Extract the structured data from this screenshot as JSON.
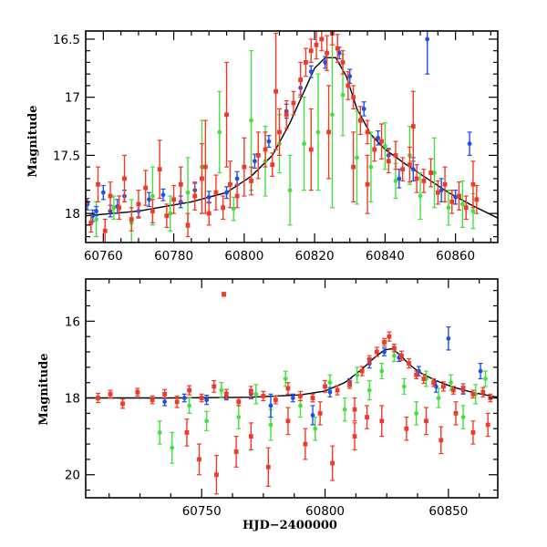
{
  "chart_data": [
    {
      "type": "scatter",
      "xlabel": "",
      "ylabel": "Magnitude",
      "xlim": [
        60755,
        60872
      ],
      "ylim": [
        18.25,
        16.43
      ],
      "y_inverted": true,
      "xticks": [
        60760,
        60780,
        60800,
        60820,
        60840,
        60860
      ],
      "yticks": [
        16.5,
        17,
        17.5,
        18
      ],
      "xtick_labels": [
        "60760",
        "60780",
        "60800",
        "60820",
        "60840",
        "60860"
      ],
      "ytick_labels": [
        "16.5",
        "17",
        "17.5",
        "18"
      ],
      "colors": {
        "red": "#f03a28",
        "green": "#44e040",
        "blue": "#1f4fe6",
        "model": "#000000"
      },
      "model_curve": {
        "x": [
          60755,
          60770,
          60785,
          60795,
          60802,
          60808,
          60813,
          60817,
          60820,
          60823,
          60826,
          60829,
          60832,
          60836,
          60840,
          60846,
          60852,
          60858,
          60864,
          60872
        ],
        "y": [
          18.02,
          17.98,
          17.9,
          17.82,
          17.68,
          17.5,
          17.22,
          16.95,
          16.75,
          16.66,
          16.66,
          16.82,
          17.1,
          17.32,
          17.45,
          17.58,
          17.7,
          17.82,
          17.92,
          18.04
        ]
      },
      "series": [
        {
          "color": "blue",
          "x": [
            60755.5,
            60757,
            60758,
            60760,
            60762,
            60764,
            60766,
            60770,
            60773,
            60777,
            60782,
            60786,
            60790,
            60795,
            60798,
            60803,
            60807,
            60812,
            60816,
            60819,
            60823,
            60827,
            60830,
            60834,
            60838,
            60841,
            60844,
            60848,
            60852,
            60856,
            60860,
            60864
          ],
          "y": [
            17.92,
            18.02,
            17.98,
            17.82,
            17.98,
            17.94,
            17.85,
            17.98,
            17.88,
            17.84,
            17.9,
            17.8,
            17.86,
            17.82,
            17.7,
            17.55,
            17.38,
            17.12,
            16.92,
            16.78,
            16.7,
            16.62,
            16.82,
            17.1,
            17.35,
            17.5,
            17.7,
            17.62,
            16.5,
            17.8,
            17.86,
            17.4
          ],
          "err": [
            0.05,
            0.05,
            0.04,
            0.06,
            0.05,
            0.06,
            0.05,
            0.05,
            0.06,
            0.05,
            0.05,
            0.06,
            0.05,
            0.05,
            0.06,
            0.06,
            0.05,
            0.06,
            0.06,
            0.05,
            0.05,
            0.05,
            0.06,
            0.06,
            0.06,
            0.06,
            0.08,
            0.1,
            0.3,
            0.1,
            0.06,
            0.1
          ]
        },
        {
          "color": "green",
          "x": [
            60758,
            60763,
            60768,
            60774,
            60779,
            60784,
            60788,
            60793,
            60797,
            60802,
            60806,
            60810,
            60813,
            60817,
            60821,
            60825,
            60828,
            60832,
            60836,
            60840,
            60843,
            60847,
            60850,
            60854,
            60858,
            60862,
            60865
          ],
          "y": [
            18.05,
            17.95,
            18.08,
            17.85,
            18.0,
            17.82,
            17.6,
            17.3,
            17.96,
            17.2,
            17.55,
            17.4,
            17.8,
            17.4,
            17.3,
            17.15,
            16.98,
            17.52,
            17.6,
            17.42,
            17.72,
            17.5,
            17.85,
            17.65,
            17.95,
            17.92,
            17.98
          ],
          "err": [
            0.15,
            0.1,
            0.2,
            0.25,
            0.15,
            0.3,
            0.4,
            0.35,
            0.1,
            0.6,
            0.3,
            0.25,
            0.3,
            0.4,
            0.5,
            0.8,
            0.35,
            0.4,
            0.3,
            0.2,
            0.15,
            0.25,
            0.2,
            0.3,
            0.15,
            0.2,
            0.15
          ]
        },
        {
          "color": "red",
          "x": [
            60755,
            60756.5,
            60758.5,
            60760.5,
            60762,
            60764.5,
            60766,
            60768,
            60770,
            60772,
            60774,
            60776,
            60778,
            60780,
            60782,
            60784,
            60786,
            60788,
            60790,
            60792,
            60794,
            60796,
            60798,
            60800,
            60802,
            60804,
            60806,
            60808,
            60810,
            60812,
            60814,
            60816,
            60817.5,
            60819,
            60820.5,
            60822,
            60823.5,
            60825,
            60826.5,
            60828,
            60829.5,
            60831,
            60833,
            60835,
            60837,
            60839,
            60841,
            60843,
            60845,
            60847,
            60849,
            60851,
            60853,
            60855,
            60857,
            60859,
            60861,
            60863,
            60865,
            60866,
            60831,
            60809,
            60835,
            60789,
            60848,
            60824,
            60819,
            60795
          ],
          "y": [
            17.9,
            18.08,
            17.75,
            18.15,
            17.85,
            17.95,
            17.7,
            18.05,
            17.92,
            17.78,
            17.98,
            17.62,
            18.02,
            17.88,
            17.75,
            18.1,
            17.85,
            17.7,
            18.0,
            17.82,
            17.95,
            17.75,
            17.85,
            17.6,
            17.72,
            17.5,
            17.45,
            17.58,
            17.3,
            17.15,
            17.05,
            16.85,
            16.7,
            16.6,
            16.55,
            16.5,
            16.62,
            16.45,
            16.58,
            16.7,
            16.9,
            17.0,
            17.2,
            17.3,
            17.45,
            17.38,
            17.55,
            17.5,
            17.62,
            17.58,
            17.7,
            17.72,
            17.65,
            17.82,
            17.75,
            17.9,
            17.85,
            17.95,
            17.75,
            17.88,
            17.6,
            16.95,
            17.75,
            17.6,
            17.25,
            17.3,
            17.45,
            17.15
          ],
          "err": [
            0.1,
            0.08,
            0.15,
            0.1,
            0.12,
            0.1,
            0.2,
            0.1,
            0.12,
            0.15,
            0.1,
            0.25,
            0.1,
            0.12,
            0.15,
            0.1,
            0.12,
            0.3,
            0.1,
            0.15,
            0.1,
            0.2,
            0.1,
            0.25,
            0.12,
            0.2,
            0.15,
            0.1,
            0.2,
            0.12,
            0.1,
            0.15,
            0.12,
            0.1,
            0.12,
            0.1,
            0.15,
            0.1,
            0.12,
            0.1,
            0.12,
            0.1,
            0.12,
            0.1,
            0.1,
            0.15,
            0.1,
            0.12,
            0.1,
            0.15,
            0.12,
            0.1,
            0.12,
            0.1,
            0.15,
            0.1,
            0.12,
            0.1,
            0.2,
            0.12,
            0.3,
            0.5,
            0.25,
            0.4,
            0.3,
            0.4,
            0.35,
            0.45
          ]
        }
      ]
    },
    {
      "type": "scatter",
      "xlabel": "HJD−2400000",
      "ylabel": "Magnitude",
      "xlim": [
        60703,
        60870
      ],
      "ylim": [
        20.6,
        14.9
      ],
      "y_inverted": true,
      "xticks": [
        60750,
        60800,
        60850
      ],
      "yticks": [
        16,
        18,
        20
      ],
      "xtick_labels": [
        "60750",
        "60800",
        "60850"
      ],
      "ytick_labels": [
        "16",
        "18",
        "20"
      ],
      "model_curve": {
        "x": [
          60703,
          60740,
          60770,
          60790,
          60800,
          60808,
          60815,
          60820,
          60824,
          60827,
          60830,
          60834,
          60838,
          60845,
          60852,
          60860,
          60870
        ],
        "y": [
          18.0,
          18.0,
          17.98,
          17.92,
          17.82,
          17.6,
          17.25,
          16.95,
          16.75,
          16.72,
          16.85,
          17.12,
          17.32,
          17.55,
          17.72,
          17.86,
          17.98
        ]
      },
      "series": [
        {
          "color": "blue",
          "x": [
            60735,
            60743,
            60752,
            60760,
            60770,
            60778,
            60787,
            60795,
            60802,
            60810,
            60818,
            60824,
            60830,
            60838,
            60845,
            60850,
            60856,
            60863
          ],
          "y": [
            18.1,
            18.0,
            18.05,
            17.95,
            17.9,
            18.2,
            18.0,
            18.45,
            17.85,
            17.6,
            17.1,
            16.8,
            16.95,
            17.3,
            17.7,
            16.45,
            17.8,
            17.3
          ],
          "err": [
            0.1,
            0.1,
            0.12,
            0.1,
            0.12,
            0.3,
            0.1,
            0.25,
            0.12,
            0.1,
            0.12,
            0.1,
            0.1,
            0.12,
            0.15,
            0.3,
            0.1,
            0.2
          ]
        },
        {
          "color": "green",
          "x": [
            60733,
            60738,
            60745,
            60752,
            60758,
            60765,
            60772,
            60778,
            60784,
            60790,
            60796,
            60802,
            60808,
            60813,
            60818,
            60823,
            60828,
            60832,
            60837,
            60841,
            60846,
            60851,
            60856,
            60861,
            60865
          ],
          "y": [
            18.9,
            19.3,
            18.2,
            18.6,
            17.8,
            18.5,
            17.9,
            18.7,
            17.5,
            18.2,
            18.8,
            17.6,
            18.3,
            17.4,
            17.8,
            17.3,
            16.9,
            17.7,
            18.4,
            17.5,
            18.0,
            17.6,
            18.5,
            17.9,
            17.5
          ],
          "err": [
            0.3,
            0.4,
            0.2,
            0.25,
            0.2,
            0.3,
            0.25,
            0.4,
            0.2,
            0.3,
            0.3,
            0.2,
            0.3,
            0.2,
            0.25,
            0.2,
            0.15,
            0.2,
            0.3,
            0.2,
            0.25,
            0.2,
            0.3,
            0.25,
            0.2
          ]
        },
        {
          "color": "red",
          "x": [
            60708,
            60713,
            60718,
            60724,
            60730,
            60735,
            60740,
            60745,
            60750,
            60755,
            60760,
            60765,
            60770,
            60775,
            60780,
            60785,
            60790,
            60795,
            60800,
            60805,
            60810,
            60815,
            60818,
            60821,
            60824,
            60826,
            60828,
            60831,
            60834,
            60837,
            60840,
            60844,
            60848,
            60852,
            60856,
            60860,
            60864,
            60867,
            60749,
            60756,
            60759,
            60744,
            60764,
            60770,
            60777,
            60785,
            60792,
            60798,
            60803,
            60812,
            60817,
            60833,
            60841,
            60847,
            60853,
            60860,
            60866,
            60823,
            60812
          ],
          "y": [
            18.0,
            17.9,
            18.15,
            17.85,
            18.05,
            17.9,
            18.1,
            17.8,
            18.0,
            17.7,
            17.9,
            18.1,
            17.85,
            17.95,
            18.05,
            17.75,
            17.95,
            18.0,
            17.7,
            17.8,
            17.65,
            17.3,
            17.0,
            16.8,
            16.55,
            16.4,
            16.7,
            16.9,
            17.1,
            17.4,
            17.5,
            17.6,
            17.7,
            17.8,
            17.75,
            17.9,
            17.85,
            18.0,
            19.6,
            20.0,
            15.3,
            18.9,
            19.4,
            19.0,
            19.8,
            18.6,
            19.2,
            18.4,
            19.7,
            19.0,
            18.5,
            18.8,
            18.6,
            19.1,
            18.4,
            18.9,
            18.7,
            18.6,
            18.3
          ],
          "err": [
            0.12,
            0.1,
            0.12,
            0.1,
            0.1,
            0.12,
            0.15,
            0.12,
            0.1,
            0.15,
            0.12,
            0.1,
            0.15,
            0.12,
            0.1,
            0.15,
            0.12,
            0.1,
            0.15,
            0.12,
            0.1,
            0.12,
            0.1,
            0.12,
            0.1,
            0.12,
            0.1,
            0.12,
            0.12,
            0.1,
            0.12,
            0.1,
            0.12,
            0.1,
            0.12,
            0.1,
            0.12,
            0.1,
            0.4,
            0.5,
            0.05,
            0.35,
            0.4,
            0.35,
            0.5,
            0.35,
            0.4,
            0.3,
            0.45,
            0.35,
            0.3,
            0.3,
            0.35,
            0.35,
            0.3,
            0.3,
            0.3,
            0.4,
            0.3
          ]
        }
      ]
    }
  ]
}
